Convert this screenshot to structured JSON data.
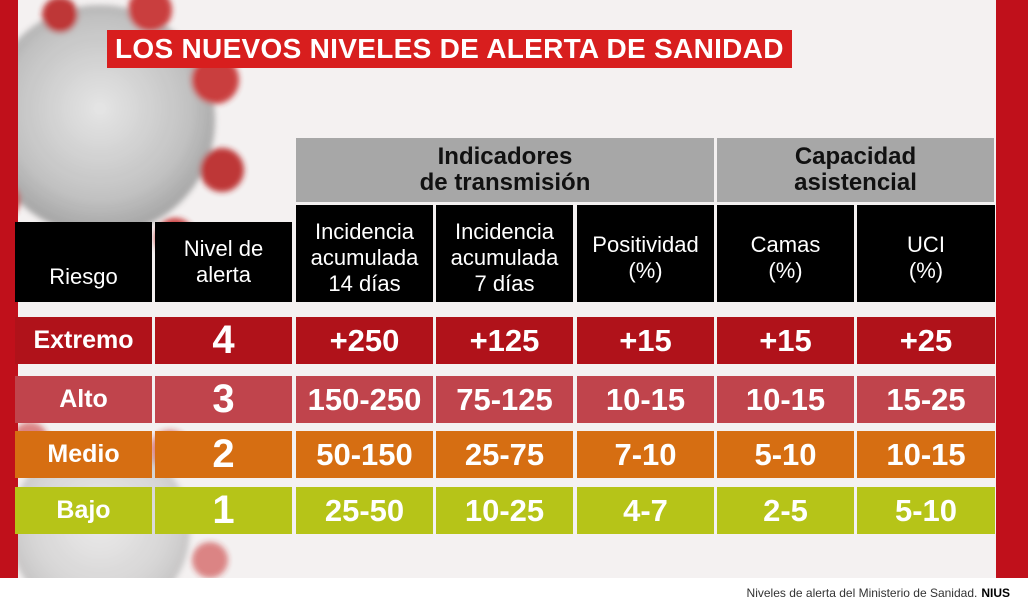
{
  "title": "LOS NUEVOS NIVELES DE ALERTA DE SANIDAD",
  "groups": [
    {
      "label": "Indicadores de transmisión"
    },
    {
      "label": "Capacidad asistencial"
    }
  ],
  "headers": [
    "Riesgo",
    "Nivel de alerta",
    "Incidencia acumulada 14 días",
    "Incidencia acumulada 7 días",
    "Positividad (%)",
    "Camas (%)",
    "UCI (%)"
  ],
  "rows": [
    {
      "riesgo": "Extremo",
      "nivel": "4",
      "values": [
        "+250",
        "+125",
        "+15",
        "+15",
        "+25"
      ],
      "color": "#b0121a"
    },
    {
      "riesgo": "Alto",
      "nivel": "3",
      "values": [
        "150-250",
        "75-125",
        "10-15",
        "10-15",
        "15-25"
      ],
      "color": "#c0444c"
    },
    {
      "riesgo": "Medio",
      "nivel": "2",
      "values": [
        "50-150",
        "25-75",
        "7-10",
        "5-10",
        "10-15"
      ],
      "color": "#d66e12"
    },
    {
      "riesgo": "Bajo",
      "nivel": "1",
      "values": [
        "25-50",
        "10-25",
        "4-7",
        "2-5",
        "5-10"
      ],
      "color": "#b6c418"
    }
  ],
  "caption": {
    "text": "Niveles de alerta del Ministerio de Sanidad.",
    "source": "NIUS"
  }
}
